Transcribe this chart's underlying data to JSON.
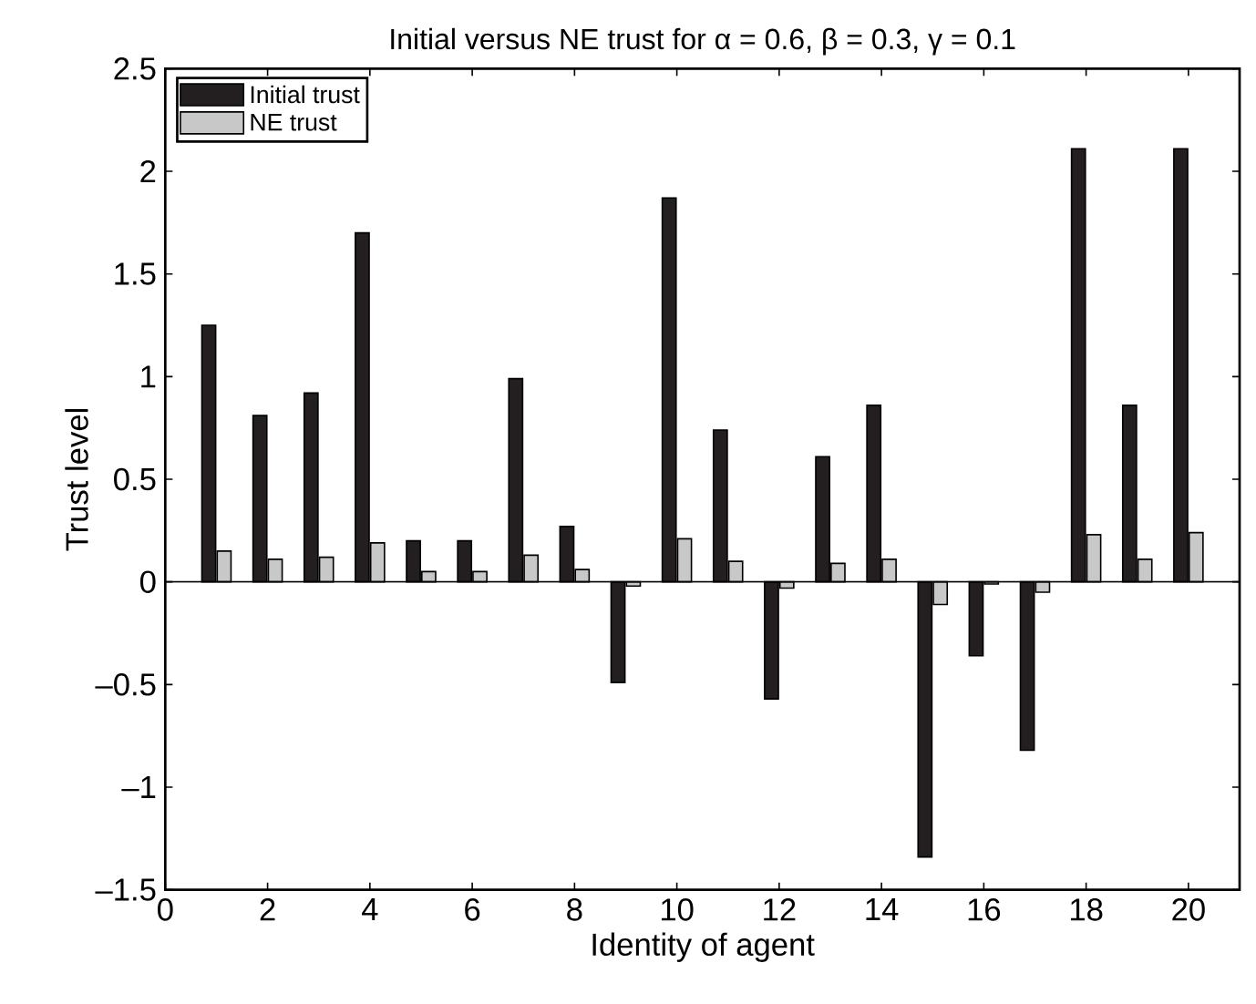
{
  "chart_data": {
    "type": "bar",
    "title": "Initial versus NE trust for α = 0.6, β = 0.3, γ = 0.1",
    "xlabel": "Identity of agent",
    "ylabel": "Trust level",
    "x": [
      1,
      2,
      3,
      4,
      5,
      6,
      7,
      8,
      9,
      10,
      11,
      12,
      13,
      14,
      15,
      16,
      17,
      18,
      19,
      20
    ],
    "series": [
      {
        "name": "Initial trust",
        "color": "#231f20",
        "values": [
          1.25,
          0.81,
          0.92,
          1.7,
          0.2,
          0.2,
          0.99,
          0.27,
          -0.49,
          1.87,
          0.74,
          -0.57,
          0.61,
          0.86,
          -1.34,
          -0.36,
          -0.82,
          2.11,
          0.86,
          2.11
        ]
      },
      {
        "name": "NE trust",
        "color": "#c8c8c8",
        "values": [
          0.15,
          0.11,
          0.12,
          0.19,
          0.05,
          0.05,
          0.13,
          0.06,
          -0.02,
          0.21,
          0.1,
          -0.03,
          0.09,
          0.11,
          -0.11,
          -0.01,
          -0.05,
          0.23,
          0.11,
          0.24
        ]
      }
    ],
    "xlim": [
      0,
      21
    ],
    "xticks": [
      0,
      2,
      4,
      6,
      8,
      10,
      12,
      14,
      16,
      18,
      20
    ],
    "ylim": [
      -1.5,
      2.5
    ],
    "yticks": [
      {
        "value": -1.5,
        "label": "–1.5"
      },
      {
        "value": -1,
        "label": "–1"
      },
      {
        "value": -0.5,
        "label": "–0.5"
      },
      0,
      0.5,
      1,
      1.5,
      2,
      2.5
    ],
    "legend": "top left"
  }
}
